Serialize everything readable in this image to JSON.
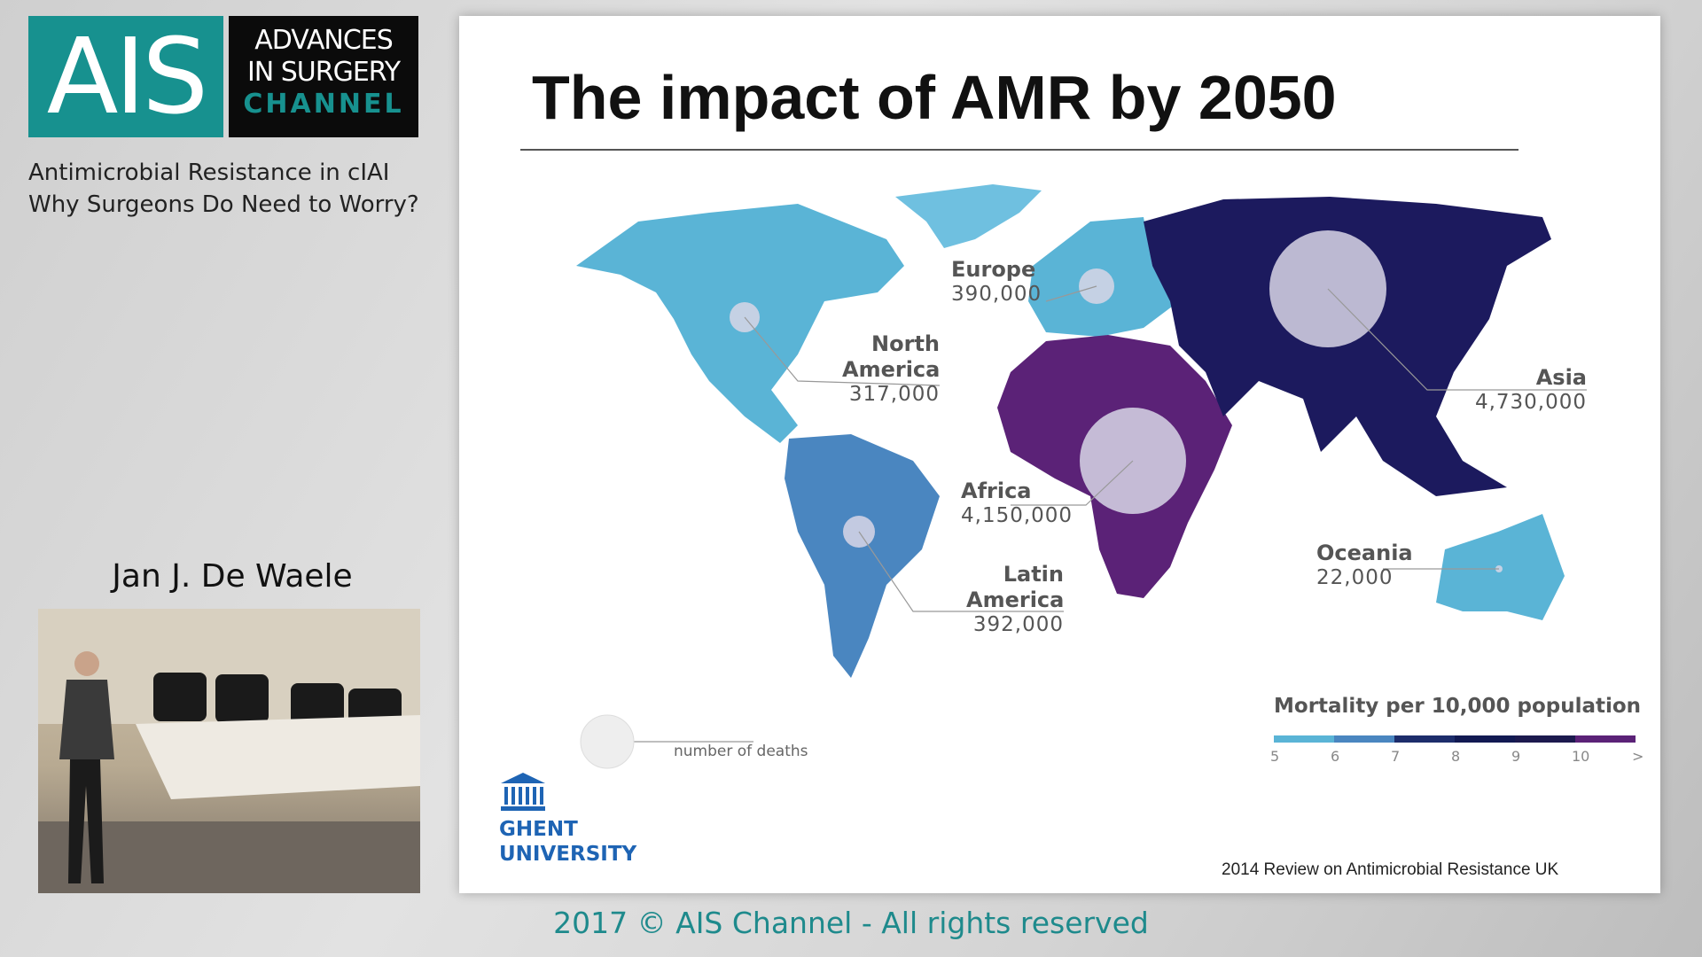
{
  "logo": {
    "mark": "AIS",
    "line1": "ADVANCES",
    "line2": "IN SURGERY",
    "line3": "CHANNEL"
  },
  "talk": {
    "title_line1": "Antimicrobial Resistance in cIAI",
    "title_line2": "Why Surgeons Do Need to Worry?",
    "speaker": "Jan J. De Waele"
  },
  "slide": {
    "title": "The impact of AMR by 2050",
    "regions": [
      {
        "name": "Europe",
        "deaths": "390,000",
        "color": "#5ab4d6"
      },
      {
        "name": "North America",
        "deaths": "317,000",
        "color": "#5ab4d6"
      },
      {
        "name": "Asia",
        "deaths": "4,730,000",
        "color": "#1c1a5e"
      },
      {
        "name": "Africa",
        "deaths": "4,150,000",
        "color": "#5b2277"
      },
      {
        "name": "Latin America",
        "deaths": "392,000",
        "color": "#4a86c0"
      },
      {
        "name": "Oceania",
        "deaths": "22,000",
        "color": "#5ab4d6"
      }
    ],
    "bubble_legend": "number of deaths",
    "legend": {
      "title": "Mortality per 10,000 population",
      "ticks": [
        "5",
        "6",
        "7",
        "8",
        "9",
        "10",
        ">"
      ],
      "colors": [
        "#5ab4d6",
        "#4a86c0",
        "#1d2d6b",
        "#121a52",
        "#1c1a4e",
        "#5b2277"
      ]
    },
    "institution": {
      "line1": "GHENT",
      "line2": "UNIVERSITY"
    },
    "source": "2014 Review on Antimicrobial Resistance UK"
  },
  "footer": "2017 © AIS Channel - All rights reserved"
}
